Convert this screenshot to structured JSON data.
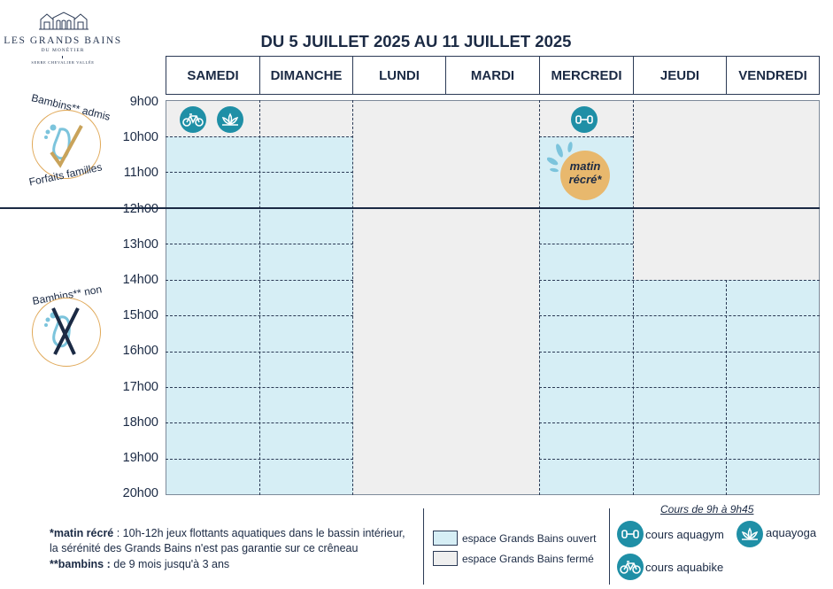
{
  "logo": {
    "name": "LES GRANDS BAINS",
    "sub": "DU MONÊTIER",
    "sub2": "SERRE CHEVALIER VALLÉE"
  },
  "title": "DU 5 JUILLET 2025 AU 11 JUILLET 2025",
  "days": [
    "SAMEDI",
    "DIMANCHE",
    "LUNDI",
    "MARDI",
    "MERCREDI",
    "JEUDI",
    "VENDREDI"
  ],
  "hours": [
    "9h00",
    "10h00",
    "11h00",
    "12h00",
    "13h00",
    "14h00",
    "15h00",
    "16h00",
    "17h00",
    "18h00",
    "19h00",
    "20h00"
  ],
  "badges": {
    "admis_top": "Bambins** admis",
    "admis_bottom": "Forfaits familles",
    "non_admis": "Bambins** non admis"
  },
  "matin_recre": {
    "line1": "matin",
    "line2": "récré*"
  },
  "notes": {
    "recre_label": "*matin récré",
    "recre_text1": " : 10h-12h jeux flottants aquatiques dans le bassin intérieur,",
    "recre_text2": "la sérénité des Grands Bains n'est pas garantie sur ce crêneau",
    "bambins_label": "**bambins :",
    "bambins_text": " de 9 mois jusqu'à 3 ans"
  },
  "legend": {
    "open": "espace Grands Bains ouvert",
    "closed": "espace Grands Bains fermé",
    "courses_title": "Cours de 9h à 9h45",
    "aquagym": "cours aquagym",
    "aquayoga": "aquayoga",
    "aquabike": "cours aquabike"
  },
  "colors": {
    "open": "#d6eef5",
    "closed": "#efefef",
    "icon": "#1f8fa6",
    "navy": "#1b2a44",
    "recre": "#e8b86d"
  }
}
